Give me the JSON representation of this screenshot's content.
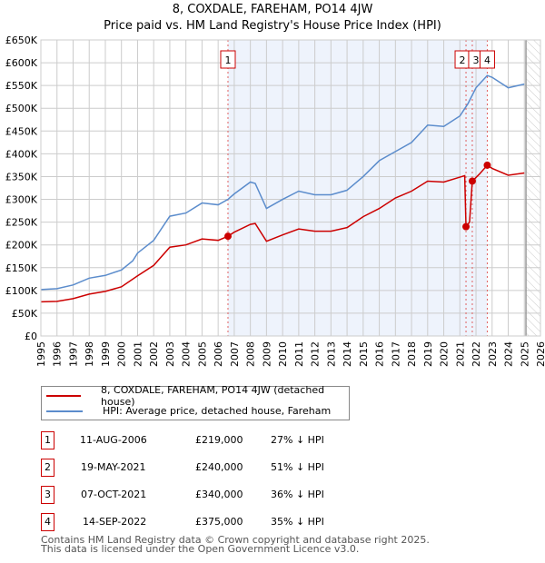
{
  "chart_data": {
    "type": "line",
    "title": "8, COXDALE, FAREHAM, PO14 4JW",
    "subtitle": "Price paid vs. HM Land Registry's House Price Index (HPI)",
    "xlim": [
      1995,
      2026
    ],
    "ylim": [
      0,
      650000
    ],
    "x_ticks": [
      "1995",
      "1996",
      "1997",
      "1998",
      "1999",
      "2000",
      "2001",
      "2002",
      "2003",
      "2004",
      "2005",
      "2006",
      "2007",
      "2008",
      "2009",
      "2010",
      "2011",
      "2012",
      "2013",
      "2014",
      "2015",
      "2016",
      "2017",
      "2018",
      "2019",
      "2020",
      "2021",
      "2022",
      "2023",
      "2024",
      "2025",
      "2026"
    ],
    "y_ticks": [
      "£0",
      "£50K",
      "£100K",
      "£150K",
      "£200K",
      "£250K",
      "£300K",
      "£350K",
      "£400K",
      "£450K",
      "£500K",
      "£550K",
      "£600K",
      "£650K"
    ],
    "series": [
      {
        "name": "8, COXDALE, FAREHAM, PO14 4JW (detached house)",
        "color": "#cc0000",
        "x": [
          1995,
          1996,
          1997,
          1998,
          1999,
          2000,
          2001,
          2002,
          2003,
          2004,
          2005,
          2006,
          2006.61,
          2007,
          2008,
          2008.3,
          2009,
          2010,
          2011,
          2012,
          2013,
          2014,
          2015,
          2016,
          2017,
          2018,
          2019,
          2020,
          2021.3,
          2021.38,
          2021.6,
          2021.77,
          2022.2,
          2022.7,
          2023,
          2024,
          2025
        ],
        "y": [
          75000,
          76000,
          82000,
          92000,
          98000,
          108000,
          132000,
          155000,
          195000,
          200000,
          213000,
          210000,
          219000,
          228000,
          245000,
          247000,
          208000,
          222000,
          235000,
          230000,
          230000,
          238000,
          262000,
          280000,
          303000,
          318000,
          340000,
          338000,
          352000,
          240000,
          250000,
          340000,
          355000,
          375000,
          368000,
          353000,
          358000
        ]
      },
      {
        "name": "HPI: Average price, detached house, Fareham",
        "color": "#5b8ccc",
        "x": [
          1995,
          1996,
          1997,
          1998,
          1999,
          2000,
          2000.7,
          2001,
          2002,
          2003,
          2004,
          2005,
          2006,
          2006.61,
          2007,
          2008,
          2008.3,
          2009,
          2010,
          2011,
          2012,
          2013,
          2014,
          2015,
          2016,
          2017,
          2018,
          2019,
          2020,
          2021,
          2021.5,
          2022,
          2022.7,
          2023,
          2024,
          2025
        ],
        "y": [
          102000,
          104000,
          112000,
          127000,
          133000,
          145000,
          165000,
          182000,
          210000,
          263000,
          270000,
          292000,
          288000,
          300000,
          312000,
          338000,
          335000,
          280000,
          300000,
          318000,
          310000,
          310000,
          320000,
          350000,
          385000,
          405000,
          425000,
          463000,
          460000,
          483000,
          510000,
          545000,
          572000,
          568000,
          545000,
          553000
        ]
      }
    ],
    "sales": [
      {
        "n": "1",
        "date": "11-AUG-2006",
        "x": 2006.61,
        "price": "£219,000",
        "value": 219000,
        "hpi": "27% ↓ HPI"
      },
      {
        "n": "2",
        "date": "19-MAY-2021",
        "x": 2021.38,
        "price": "£240,000",
        "value": 240000,
        "hpi": "51% ↓ HPI"
      },
      {
        "n": "3",
        "date": "07-OCT-2021",
        "x": 2021.77,
        "price": "£340,000",
        "value": 340000,
        "hpi": "36% ↓ HPI"
      },
      {
        "n": "4",
        "date": "14-SEP-2022",
        "x": 2022.7,
        "price": "£375,000",
        "value": 375000,
        "hpi": "35% ↓ HPI"
      }
    ],
    "forecast_from": 2025.1
  },
  "footer": {
    "line1": "Contains HM Land Registry data © Crown copyright and database right 2025.",
    "line2": "This data is licensed under the Open Government Licence v3.0."
  }
}
